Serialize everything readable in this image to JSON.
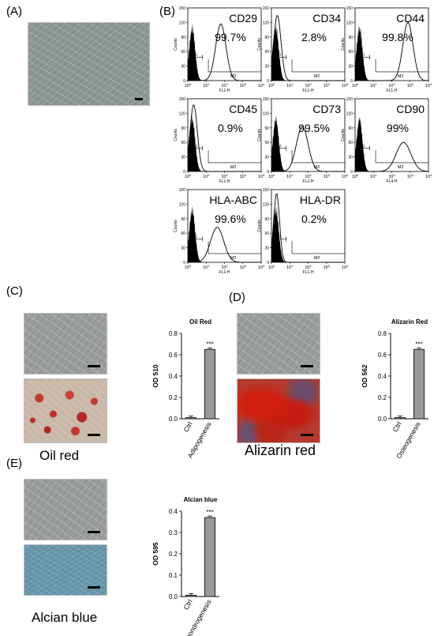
{
  "panels": {
    "A": "(A)",
    "B": "(B)",
    "C": "(C)",
    "D": "(D)",
    "E": "(E)"
  },
  "flow": {
    "y_ticks": [
      "0",
      "30",
      "60",
      "90",
      "120",
      "150"
    ],
    "y_label": "Counts",
    "gate1": "M1",
    "gate2": "M2",
    "plots": [
      {
        "marker": "CD29",
        "percent": "99.7%",
        "xlabel": "FL1-H"
      },
      {
        "marker": "CD34",
        "percent": "2.8%",
        "xlabel": "FL1-H"
      },
      {
        "marker": "CD44",
        "percent": "99.8%",
        "xlabel": "FL1-H"
      },
      {
        "marker": "CD45",
        "percent": "0.9%",
        "xlabel": "FL1-H"
      },
      {
        "marker": "CD73",
        "percent": "99.5%",
        "xlabel": "FL1-H"
      },
      {
        "marker": "CD90",
        "percent": "99%",
        "xlabel": "FL4-H"
      },
      {
        "marker": "HLA-ABC",
        "percent": "99.6%",
        "xlabel": "FL1-H"
      },
      {
        "marker": "HLA-DR",
        "percent": "0.2%",
        "xlabel": "FL1-H"
      }
    ]
  },
  "captions": {
    "oil": "Oil red",
    "alizarin": "Alizarin red",
    "alcian": "Alcian blue"
  },
  "chart_data": [
    {
      "type": "bar",
      "title": "Oil Red",
      "ylabel": "OD 510",
      "categories": [
        "Ctrl",
        "Adipogenesis"
      ],
      "values": [
        0.01,
        0.65
      ],
      "ylim": [
        0,
        0.8
      ],
      "yticks": [
        "0.0",
        "0.2",
        "0.4",
        "0.6",
        "0.8"
      ],
      "significance": "***"
    },
    {
      "type": "bar",
      "title": "Alizarin Red",
      "ylabel": "OD 562",
      "categories": [
        "Ctrl",
        "Osteogenesis"
      ],
      "values": [
        0.01,
        0.65
      ],
      "ylim": [
        0,
        0.8
      ],
      "yticks": [
        "0.0",
        "0.2",
        "0.4",
        "0.6",
        "0.8"
      ],
      "significance": "***"
    },
    {
      "type": "bar",
      "title": "Alcian blue",
      "ylabel": "OD 595",
      "categories": [
        "Ctrl",
        "Chondrogenesis"
      ],
      "values": [
        0.006,
        0.37
      ],
      "ylim": [
        0,
        0.4
      ],
      "yticks": [
        "0.0",
        "0.1",
        "0.2",
        "0.3",
        "0.4"
      ],
      "significance": "***"
    }
  ]
}
